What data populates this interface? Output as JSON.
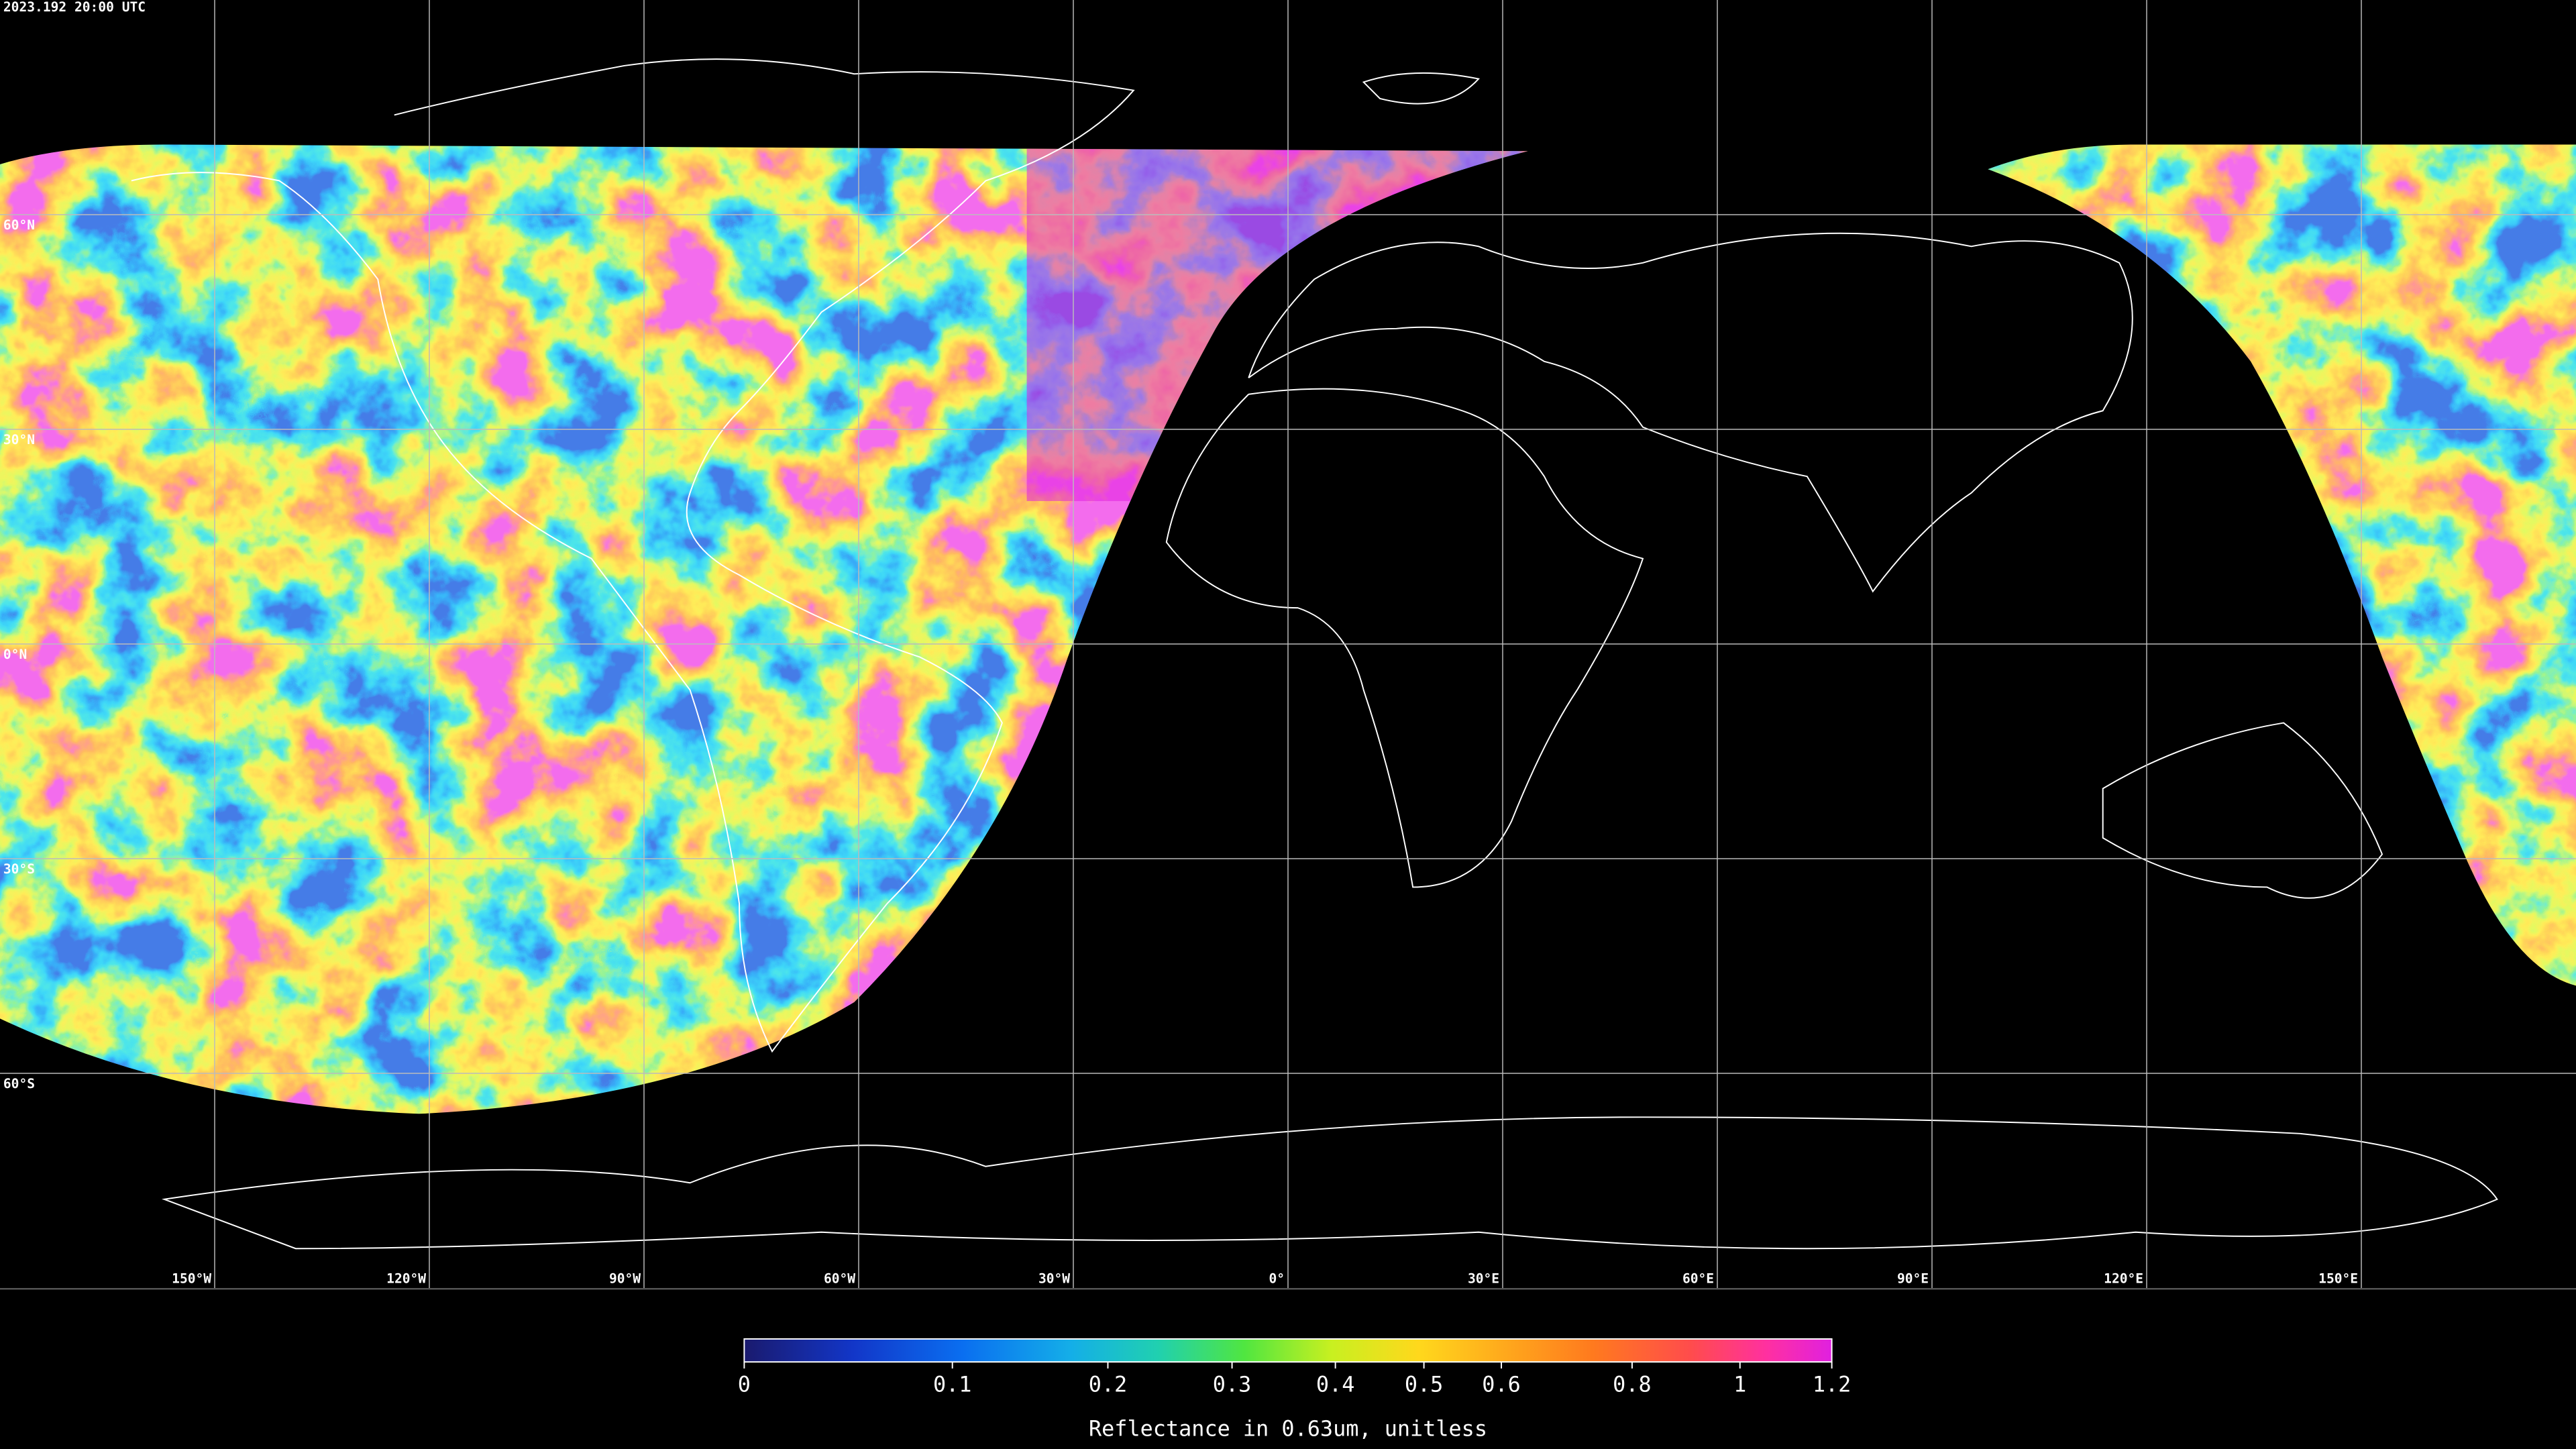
{
  "timestamp": "2023.192 20:00 UTC",
  "map": {
    "lat_labels": [
      {
        "value": 60,
        "label": "60°N"
      },
      {
        "value": 30,
        "label": "30°N"
      },
      {
        "value": 0,
        "label": "0°N"
      },
      {
        "value": -30,
        "label": "30°S"
      },
      {
        "value": -60,
        "label": "60°S"
      }
    ],
    "lon_labels": [
      {
        "value": -150,
        "label": "150°W"
      },
      {
        "value": -120,
        "label": "120°W"
      },
      {
        "value": -90,
        "label": "90°W"
      },
      {
        "value": -60,
        "label": "60°W"
      },
      {
        "value": -30,
        "label": "30°W"
      },
      {
        "value": 0,
        "label": "0°"
      },
      {
        "value": 30,
        "label": "30°E"
      },
      {
        "value": 60,
        "label": "60°E"
      },
      {
        "value": 90,
        "label": "90°E"
      },
      {
        "value": 120,
        "label": "120°E"
      },
      {
        "value": 150,
        "label": "150°E"
      }
    ]
  },
  "colorbar": {
    "lim": [
      0,
      1.2
    ],
    "ticks": [
      0,
      0.1,
      0.2,
      0.3,
      0.4,
      0.5,
      0.6,
      0.8,
      1,
      1.2
    ],
    "label": "Reflectance in 0.63um, unitless"
  }
}
